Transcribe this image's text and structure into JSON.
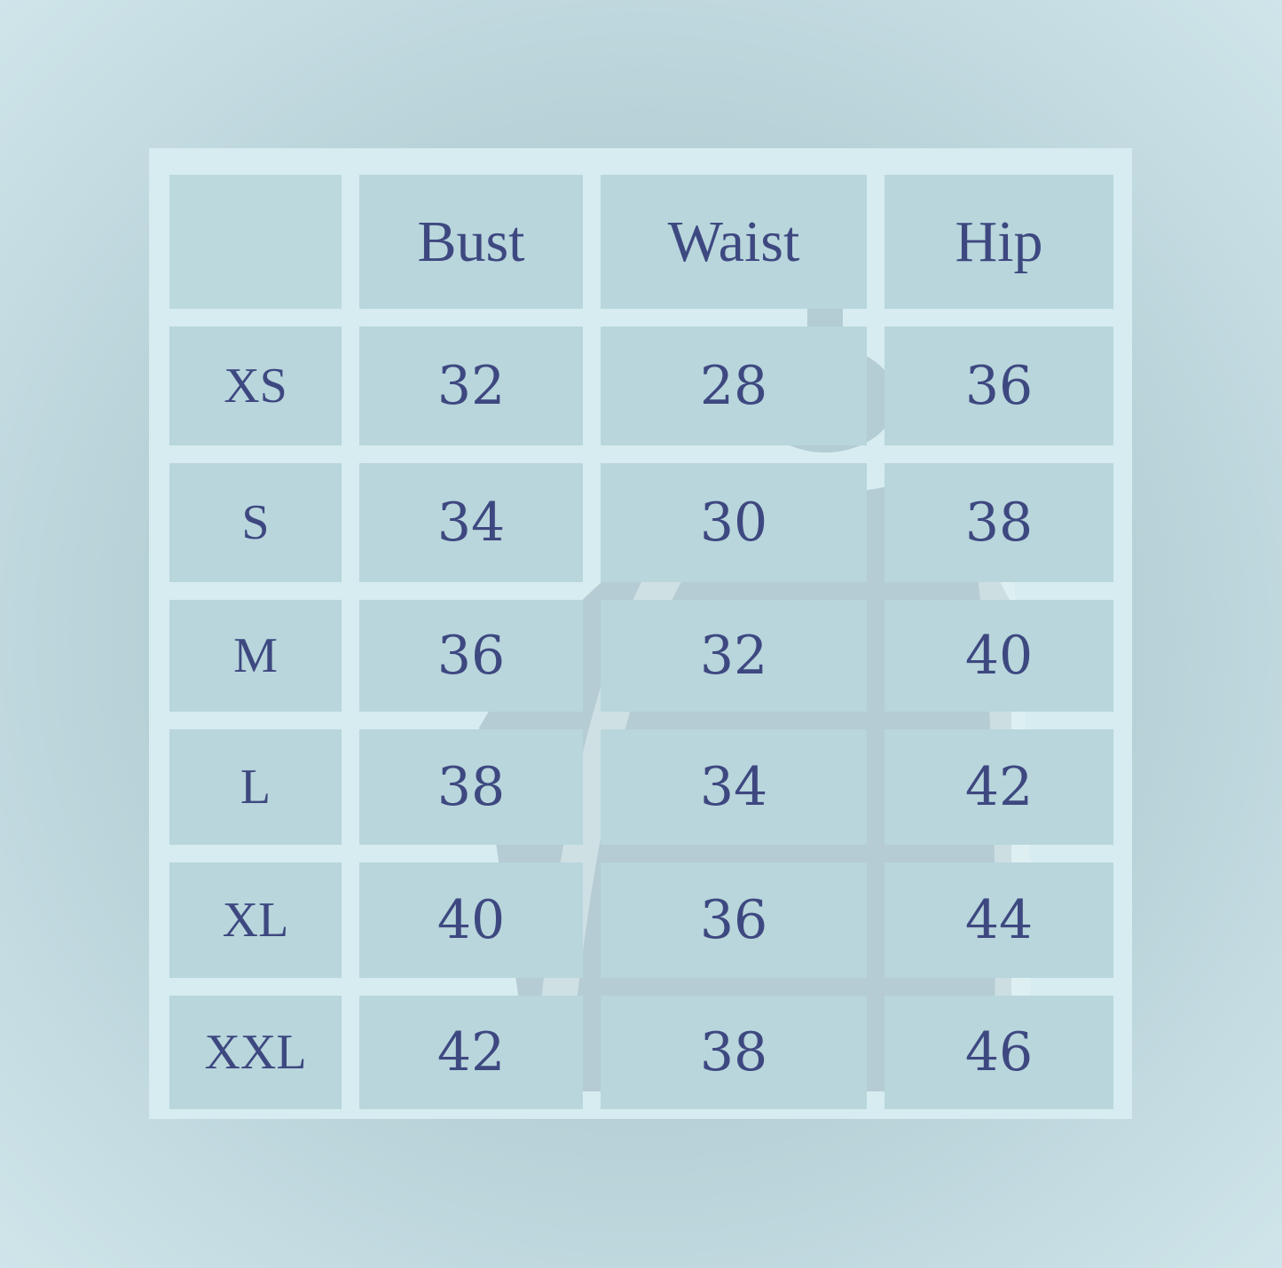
{
  "table": {
    "headers": [
      "",
      "Bust",
      "Waist",
      "Hip"
    ],
    "rows": [
      {
        "size": "XS",
        "bust": "32",
        "waist": "28",
        "hip": "36"
      },
      {
        "size": "S",
        "bust": "34",
        "waist": "30",
        "hip": "38"
      },
      {
        "size": "M",
        "bust": "36",
        "waist": "32",
        "hip": "40"
      },
      {
        "size": "L",
        "bust": "38",
        "waist": "34",
        "hip": "42"
      },
      {
        "size": "XL",
        "bust": "40",
        "waist": "36",
        "hip": "44"
      },
      {
        "size": "XXL",
        "bust": "42",
        "waist": "38",
        "hip": "46"
      }
    ]
  },
  "colors": {
    "text": "#3e4880",
    "cell": "#b8d6dc",
    "panel": "#d6ecf0"
  }
}
